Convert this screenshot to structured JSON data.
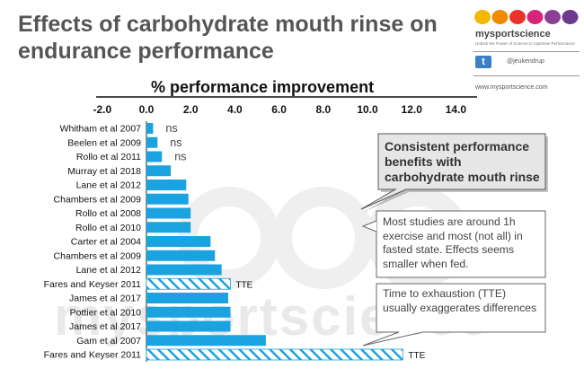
{
  "title": "Effects of carbohydrate mouth rinse on endurance performance",
  "brand": {
    "name": "mysportscience",
    "tagline": "Unlock the Power of Science to Optimise Performance",
    "twitter_handle": "@jeukendrup",
    "website": "www.mysportscience.com",
    "dot_colors": [
      "#f5b800",
      "#f08a00",
      "#e8342b",
      "#d6247a",
      "#8a3f96",
      "#6b3a8f"
    ]
  },
  "watermark": "mysportscience",
  "chart_data": {
    "type": "bar",
    "orientation": "horizontal",
    "xlabel": "% performance improvement",
    "xlim": [
      -2.0,
      14.0
    ],
    "xticks": [
      "-2.0",
      "0.0",
      "2.0",
      "4.0",
      "6.0",
      "8.0",
      "10.0",
      "12.0",
      "14.0"
    ],
    "categories": [
      "Whitham et al 2007",
      "Beelen et al 2009",
      "Rollo et al 2011",
      "Murray et al 2018",
      "Lane et al 2012",
      "Chambers et al 2009",
      "Rollo et al 2008",
      "Rollo et al 2010",
      "Carter et al  2004",
      "Chambers et al 2009",
      "Lane et al 2012",
      "Fares and Keyser 2011",
      "James et al 2017",
      "Pottier et al 2010",
      "James et al 2017",
      "Gam et al 2007",
      "Fares and Keyser 2011"
    ],
    "values": [
      0.3,
      0.5,
      0.7,
      1.1,
      1.8,
      1.9,
      2.0,
      2.0,
      2.9,
      3.1,
      3.4,
      3.8,
      3.7,
      3.8,
      3.8,
      5.4,
      11.6
    ],
    "hatched": [
      false,
      false,
      false,
      false,
      false,
      false,
      false,
      false,
      false,
      false,
      false,
      true,
      false,
      false,
      false,
      false,
      true
    ],
    "annotations": [
      "ns",
      "ns",
      "ns",
      "",
      "",
      "",
      "",
      "",
      "",
      "",
      "",
      "TTE",
      "",
      "",
      "",
      "",
      "TTE"
    ],
    "bar_color": "#1aa3e0"
  },
  "callouts": [
    {
      "text": "Consistent performance benefits with carbohydrate mouth rinse",
      "bold": true
    },
    {
      "text": "Most studies are around 1h exercise and most (not all) in fasted state. Effects seems smaller when fed.",
      "bold": false
    },
    {
      "text": "Time to exhaustion (TTE) usually exaggerates differences",
      "bold": false
    }
  ]
}
